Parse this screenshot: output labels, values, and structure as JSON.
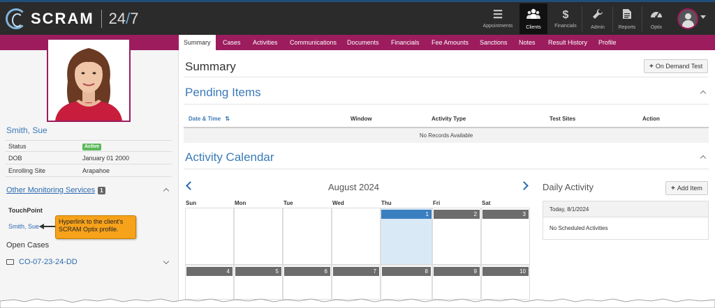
{
  "brand": {
    "name": "SCRAM",
    "tag_prefix": "24",
    "tag_slash": "/",
    "tag_suffix": "7"
  },
  "nav": [
    {
      "label": "Appointments",
      "icon": "list-icon",
      "glyph": "☰",
      "active": false
    },
    {
      "label": "Clients",
      "icon": "users-icon",
      "glyph": "👥",
      "active": true
    },
    {
      "label": "Financials",
      "icon": "dollar-icon",
      "glyph": "$",
      "active": false
    },
    {
      "label": "Admin",
      "icon": "wrench-icon",
      "glyph": "🔧",
      "active": false
    },
    {
      "label": "Reports",
      "icon": "document-icon",
      "glyph": "▤",
      "active": false
    },
    {
      "label": "Optix",
      "icon": "gauge-icon",
      "glyph": "◔",
      "active": false
    }
  ],
  "tabs": [
    "Summary",
    "Cases",
    "Activities",
    "Communications",
    "Documents",
    "Financials",
    "Fee Amounts",
    "Sanctions",
    "Notes",
    "Result History",
    "Profile"
  ],
  "active_tab": "Summary",
  "client": {
    "name": "Smith, Sue",
    "fields": [
      {
        "label": "Status",
        "value": "Active"
      },
      {
        "label": "DOB",
        "value": "January 01 2000"
      },
      {
        "label": "Enrolling Site",
        "value": "Arapahoe"
      }
    ]
  },
  "other_monitoring": {
    "label": "Other Monitoring Services",
    "count": "1",
    "program": "TouchPoint",
    "link": "Smith, Sue"
  },
  "callout": "Hyperlink to the client's SCRAM Optix profile.",
  "open_cases": {
    "label": "Open Cases",
    "case_id": "CO-07-23-24-DD"
  },
  "main": {
    "title": "Summary",
    "on_demand_button": "On Demand Test",
    "pending_title": "Pending Items",
    "table_headers": [
      "Date & Time",
      "Window",
      "Activity Type",
      "Test Sites",
      "Action"
    ],
    "no_records": "No Records Available",
    "calendar_title": "Activity Calendar"
  },
  "calendar": {
    "month": "August 2024",
    "weekdays": [
      "Sun",
      "Mon",
      "Tue",
      "Wed",
      "Thu",
      "Fri",
      "Sat"
    ],
    "week1": [
      "1",
      "2",
      "3"
    ],
    "week2": [
      "4",
      "5",
      "6",
      "7",
      "8",
      "9",
      "10"
    ],
    "today": "1"
  },
  "daily": {
    "title": "Daily Activity",
    "add_button": "Add Item",
    "date_label": "Today, 8/1/2024",
    "empty": "No Scheduled Activities"
  },
  "colors": {
    "brand_magenta": "#9c1c5e",
    "link_blue": "#3a7ab8",
    "today_blue": "#3a7fc0",
    "callout_orange": "#f7a21b",
    "active_green": "#5cb85c"
  }
}
